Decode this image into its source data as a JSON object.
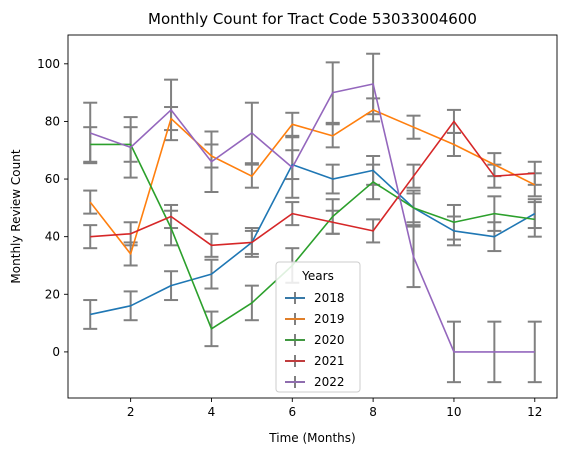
{
  "chart_data": {
    "type": "line",
    "title": "Monthly Count for Tract Code 53033004600",
    "xlabel": "Time (Months)",
    "ylabel": "Monthly Review Count",
    "x": [
      1,
      2,
      3,
      4,
      5,
      6,
      7,
      8,
      9,
      10,
      11,
      12
    ],
    "xlim": [
      0.45,
      12.55
    ],
    "ylim": [
      -16,
      110
    ],
    "xticks": [
      2,
      4,
      6,
      8,
      10,
      12
    ],
    "yticks": [
      0,
      20,
      40,
      60,
      80,
      100
    ],
    "grid": false,
    "legend": {
      "title": "Years",
      "placement": "lower-center"
    },
    "errorbar_color": "#808080",
    "series": [
      {
        "name": "2018",
        "color": "#1f77b4",
        "values": [
          13,
          16,
          23,
          27,
          38,
          65,
          60,
          63,
          50,
          42,
          40,
          48
        ],
        "errors": [
          5,
          5,
          5,
          5,
          5,
          5,
          5,
          5,
          5,
          5,
          5,
          5
        ]
      },
      {
        "name": "2019",
        "color": "#ff7f0e",
        "values": [
          52,
          34,
          81,
          68,
          61,
          79,
          75,
          84,
          78,
          72,
          65,
          58
        ],
        "errors": [
          4,
          4,
          4,
          4,
          4,
          4,
          4,
          4,
          4,
          4,
          4,
          4
        ]
      },
      {
        "name": "2020",
        "color": "#2ca02c",
        "values": [
          72,
          72,
          43,
          8,
          17,
          30,
          47,
          59,
          50,
          45,
          48,
          46
        ],
        "errors": [
          6,
          6,
          6,
          6,
          6,
          6,
          6,
          6,
          6,
          6,
          6,
          6
        ]
      },
      {
        "name": "2021",
        "color": "#d62728",
        "values": [
          40,
          41,
          47,
          37,
          38,
          48,
          45,
          42,
          61,
          80,
          61,
          62
        ],
        "errors": [
          4,
          4,
          4,
          4,
          4,
          4,
          4,
          4,
          4,
          4,
          4,
          4
        ]
      },
      {
        "name": "2022",
        "color": "#9467bd",
        "values": [
          76,
          71,
          84,
          66,
          76,
          64,
          90,
          93,
          33,
          0,
          0,
          0
        ],
        "errors": [
          10.5,
          10.5,
          10.5,
          10.5,
          10.5,
          10.5,
          10.5,
          10.5,
          10.5,
          10.5,
          10.5,
          10.5
        ]
      }
    ]
  }
}
